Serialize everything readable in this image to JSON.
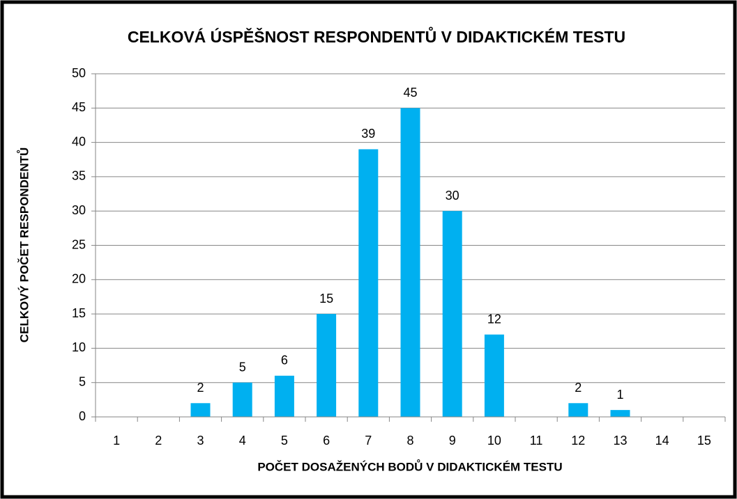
{
  "chart_data": {
    "type": "bar",
    "title": "CELKOVÁ ÚSPĚŠNOST RESPONDENTŮ V DIDAKTICKÉM TESTU",
    "x_label": "POČET DOSAŽENÝCH BODŮ V DIDAKTICKÉM TESTU",
    "y_label": "CELKOVÝ POČET RESPONDENTŮ",
    "categories": [
      "1",
      "2",
      "3",
      "4",
      "5",
      "6",
      "7",
      "8",
      "9",
      "10",
      "11",
      "12",
      "13",
      "14",
      "15"
    ],
    "values": [
      0,
      0,
      2,
      5,
      6,
      15,
      39,
      45,
      30,
      12,
      0,
      2,
      1,
      0,
      0
    ],
    "value_labels": [
      null,
      null,
      "2",
      "5",
      "6",
      "15",
      "39",
      "45",
      "30",
      "12",
      null,
      "2",
      "1",
      null,
      null
    ],
    "color": "#00b0f0",
    "ylim": [
      0,
      50
    ],
    "yticks": [
      0,
      5,
      10,
      15,
      20,
      25,
      30,
      35,
      40,
      45,
      50
    ],
    "grid": true
  }
}
